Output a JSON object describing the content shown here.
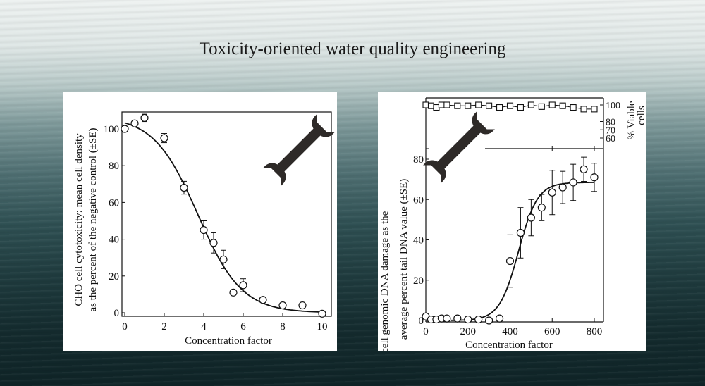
{
  "slide": {
    "title": "Toxicity-oriented water quality engineering"
  },
  "colors": {
    "ink": "#111111",
    "wrench": "#2e2a28",
    "panel": "#ffffff"
  },
  "icons": [
    "wrench-icon",
    "wrench-icon"
  ],
  "chart_data": [
    {
      "type": "scatter",
      "title": "",
      "xlabel": "Concentration factor",
      "ylabel_lines": [
        "CHO cell cytotoxicity: mean cell density",
        "as the percent of the negative control (±SE)"
      ],
      "xlim": [
        0,
        10
      ],
      "ylim": [
        0,
        108
      ],
      "xticks": [
        "0",
        "2",
        "4",
        "6",
        "8",
        "10"
      ],
      "yticks": [
        "0",
        "20",
        "40",
        "60",
        "80",
        "100"
      ],
      "grid": false,
      "points": [
        {
          "x": 0,
          "y": 100,
          "err": 0
        },
        {
          "x": 0.5,
          "y": 103,
          "err": 0
        },
        {
          "x": 1,
          "y": 106,
          "err": 2
        },
        {
          "x": 2,
          "y": 95,
          "err": 2.5
        },
        {
          "x": 3,
          "y": 68,
          "err": 3.5
        },
        {
          "x": 4,
          "y": 45,
          "err": 5
        },
        {
          "x": 4.5,
          "y": 38,
          "err": 5.5
        },
        {
          "x": 5,
          "y": 29,
          "err": 5
        },
        {
          "x": 5.5,
          "y": 11,
          "err": 0
        },
        {
          "x": 6,
          "y": 15,
          "err": 3.5
        },
        {
          "x": 7,
          "y": 7,
          "err": 0
        },
        {
          "x": 8,
          "y": 4,
          "err": 0
        },
        {
          "x": 9,
          "y": 4,
          "err": 0
        },
        {
          "x": 10,
          "y": -0.5,
          "err": 0
        }
      ],
      "fit": {
        "model": "logistic",
        "top": 107,
        "bottom": 0,
        "x50": 3.7,
        "slope": 0.9
      }
    },
    {
      "type": "scatter",
      "title": "",
      "xlabel": "Concentration factor",
      "ylabel_lines": [
        "CHO cell genomic DNA damage as the",
        "average percent tail DNA value (±SE)"
      ],
      "xlim": [
        0,
        850
      ],
      "ylim": [
        0,
        85
      ],
      "xticks": [
        "0",
        "200",
        "400",
        "600",
        "800"
      ],
      "yticks": [
        "0",
        "20",
        "40",
        "60",
        "80"
      ],
      "grid": false,
      "points": [
        {
          "x": 0,
          "y": 2,
          "err": 0
        },
        {
          "x": 25,
          "y": 0.5,
          "err": 0
        },
        {
          "x": 50,
          "y": 0.5,
          "err": 0
        },
        {
          "x": 75,
          "y": 1,
          "err": 0
        },
        {
          "x": 100,
          "y": 1,
          "err": 0
        },
        {
          "x": 150,
          "y": 1,
          "err": 0
        },
        {
          "x": 200,
          "y": 0.5,
          "err": 0
        },
        {
          "x": 250,
          "y": 0.5,
          "err": 0
        },
        {
          "x": 300,
          "y": 0,
          "err": 0
        },
        {
          "x": 350,
          "y": 1,
          "err": 0
        },
        {
          "x": 400,
          "y": 29.5,
          "err": 13
        },
        {
          "x": 450,
          "y": 43.5,
          "err": 12.5
        },
        {
          "x": 500,
          "y": 51,
          "err": 9
        },
        {
          "x": 550,
          "y": 56,
          "err": 6.5
        },
        {
          "x": 600,
          "y": 63.5,
          "err": 11
        },
        {
          "x": 650,
          "y": 66,
          "err": 8
        },
        {
          "x": 700,
          "y": 68.5,
          "err": 9
        },
        {
          "x": 750,
          "y": 75,
          "err": 6
        },
        {
          "x": 800,
          "y": 71,
          "err": 7
        }
      ],
      "fit": {
        "model": "logistic",
        "top": 68.5,
        "bottom": 0,
        "x50": 440,
        "slope": 0.022
      },
      "viability": {
        "ylabel_lines": [
          "% Viable",
          "cells"
        ],
        "ylim": [
          50,
          105
        ],
        "yticks": [
          "60",
          "70",
          "80",
          "100"
        ],
        "points": [
          {
            "x": 0,
            "y": 100
          },
          {
            "x": 25,
            "y": 99
          },
          {
            "x": 50,
            "y": 97
          },
          {
            "x": 75,
            "y": 100
          },
          {
            "x": 100,
            "y": 100
          },
          {
            "x": 150,
            "y": 99
          },
          {
            "x": 200,
            "y": 99
          },
          {
            "x": 250,
            "y": 100
          },
          {
            "x": 300,
            "y": 99
          },
          {
            "x": 350,
            "y": 97
          },
          {
            "x": 400,
            "y": 99
          },
          {
            "x": 450,
            "y": 97
          },
          {
            "x": 500,
            "y": 100
          },
          {
            "x": 550,
            "y": 98
          },
          {
            "x": 600,
            "y": 100
          },
          {
            "x": 650,
            "y": 99
          },
          {
            "x": 700,
            "y": 97
          },
          {
            "x": 750,
            "y": 95
          },
          {
            "x": 800,
            "y": 95
          }
        ]
      }
    }
  ]
}
